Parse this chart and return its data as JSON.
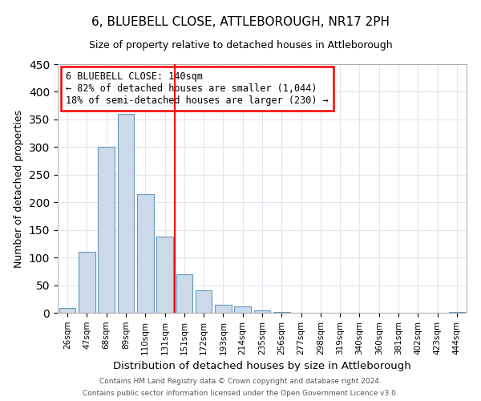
{
  "title": "6, BLUEBELL CLOSE, ATTLEBOROUGH, NR17 2PH",
  "subtitle": "Size of property relative to detached houses in Attleborough",
  "xlabel": "Distribution of detached houses by size in Attleborough",
  "ylabel": "Number of detached properties",
  "footer_line1": "Contains HM Land Registry data © Crown copyright and database right 2024.",
  "footer_line2": "Contains public sector information licensed under the Open Government Licence v3.0.",
  "bin_labels": [
    "26sqm",
    "47sqm",
    "68sqm",
    "89sqm",
    "110sqm",
    "131sqm",
    "151sqm",
    "172sqm",
    "193sqm",
    "214sqm",
    "235sqm",
    "256sqm",
    "277sqm",
    "298sqm",
    "319sqm",
    "340sqm",
    "360sqm",
    "381sqm",
    "402sqm",
    "423sqm",
    "444sqm"
  ],
  "bin_values": [
    8,
    110,
    300,
    360,
    215,
    138,
    70,
    40,
    15,
    12,
    5,
    2,
    0,
    0,
    0,
    0,
    0,
    0,
    0,
    0,
    2
  ],
  "bar_color": "#ccd9e8",
  "bar_edge_color": "#6699bb",
  "reference_line_x": 5.5,
  "reference_line_color": "red",
  "annotation_title": "6 BLUEBELL CLOSE: 140sqm",
  "annotation_line1": "← 82% of detached houses are smaller (1,044)",
  "annotation_line2": "18% of semi-detached houses are larger (230) →",
  "ylim": [
    0,
    450
  ],
  "yticks": [
    0,
    50,
    100,
    150,
    200,
    250,
    300,
    350,
    400,
    450
  ],
  "background_color": "#ffffff",
  "grid_color": "#e0e6ef"
}
